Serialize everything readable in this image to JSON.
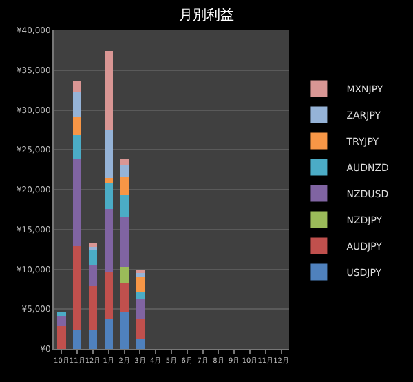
{
  "chart_data": {
    "type": "bar",
    "title": "月別利益",
    "stacked": true,
    "categories": [
      "10月",
      "11月",
      "12月",
      "1月",
      "2月",
      "3月",
      "4月",
      "5月",
      "6月",
      "7月",
      "8月",
      "9月",
      "10月",
      "11月",
      "12月"
    ],
    "series": [
      {
        "name": "USDJPY",
        "color": "#4f81bd",
        "values": [
          0,
          2400,
          2400,
          3700,
          4600,
          1200,
          null,
          null,
          null,
          null,
          null,
          null,
          null,
          null,
          null
        ]
      },
      {
        "name": "AUDJPY",
        "color": "#c0504d",
        "values": [
          2900,
          10500,
          5500,
          5900,
          3700,
          2500,
          null,
          null,
          null,
          null,
          null,
          null,
          null,
          null,
          null
        ]
      },
      {
        "name": "NZDJPY",
        "color": "#9bbb59",
        "values": [
          0,
          0,
          0,
          0,
          2000,
          0,
          null,
          null,
          null,
          null,
          null,
          null,
          null,
          null,
          null
        ]
      },
      {
        "name": "NZDUSD",
        "color": "#8064a2",
        "values": [
          1200,
          10900,
          2700,
          8000,
          6300,
          2500,
          null,
          null,
          null,
          null,
          null,
          null,
          null,
          null,
          null
        ]
      },
      {
        "name": "AUDNZD",
        "color": "#4bacc6",
        "values": [
          500,
          3000,
          2000,
          3200,
          2700,
          900,
          null,
          null,
          null,
          null,
          null,
          null,
          null,
          null,
          null
        ]
      },
      {
        "name": "TRYJPY",
        "color": "#f79646",
        "values": [
          0,
          2300,
          0,
          700,
          2300,
          2000,
          null,
          null,
          null,
          null,
          null,
          null,
          null,
          null,
          null
        ]
      },
      {
        "name": "ZARJPY",
        "color": "#95b3d7",
        "values": [
          0,
          3100,
          200,
          6000,
          1400,
          500,
          null,
          null,
          null,
          null,
          null,
          null,
          null,
          null,
          null
        ]
      },
      {
        "name": "MXNJPY",
        "color": "#d99694",
        "values": [
          0,
          1400,
          500,
          9900,
          800,
          300,
          null,
          null,
          null,
          null,
          null,
          null,
          null,
          null,
          null
        ]
      }
    ],
    "ylim": [
      0,
      40000
    ],
    "yticks": [
      {
        "value": 0,
        "label": "¥0"
      },
      {
        "value": 5000,
        "label": "¥5,000"
      },
      {
        "value": 10000,
        "label": "¥10,000"
      },
      {
        "value": 15000,
        "label": "¥15,000"
      },
      {
        "value": 20000,
        "label": "¥20,000"
      },
      {
        "value": 25000,
        "label": "¥25,000"
      },
      {
        "value": 30000,
        "label": "¥30,000"
      },
      {
        "value": 35000,
        "label": "¥35,000"
      },
      {
        "value": 40000,
        "label": "¥40,000"
      }
    ],
    "grid": "y",
    "legend": "right"
  }
}
